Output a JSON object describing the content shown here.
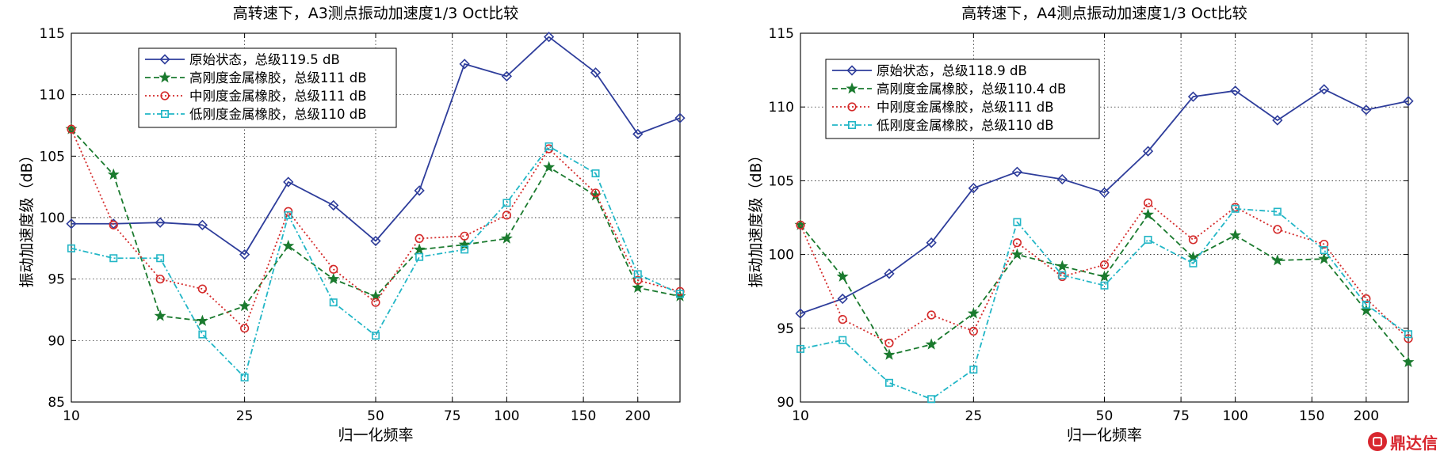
{
  "chart_data": [
    {
      "type": "line",
      "title": "高转速下，A3测点振动加速度1/3 Oct比较",
      "xlabel": "归一化频率",
      "ylabel": "振动加速度级（dB）",
      "x_scale": "log",
      "xlim": [
        10,
        250
      ],
      "ylim": [
        85,
        115
      ],
      "xticks": [
        10,
        25,
        50,
        75,
        100,
        150,
        200
      ],
      "xtick_labels": [
        "10",
        "25",
        "50",
        "75",
        "100",
        "150",
        "200"
      ],
      "yticks": [
        85,
        90,
        95,
        100,
        105,
        110,
        115
      ],
      "grid": true,
      "legend_position": "top-left",
      "x": [
        10,
        12.5,
        16,
        20,
        25,
        31.5,
        40,
        50,
        63,
        80,
        100,
        125,
        160,
        200,
        250
      ],
      "series": [
        {
          "name": "原始状态，总级119.5 dB",
          "color": "#2e3d9b",
          "style": "solid",
          "marker": "diamond",
          "values": [
            99.5,
            99.5,
            99.6,
            99.4,
            97.0,
            102.9,
            101.0,
            98.1,
            102.2,
            112.5,
            111.5,
            114.7,
            111.8,
            106.8,
            108.1
          ]
        },
        {
          "name": "高刚度金属橡胶，总级111 dB",
          "color": "#1a7a2e",
          "style": "dashed",
          "marker": "star",
          "values": [
            107.2,
            103.5,
            92.0,
            91.6,
            92.8,
            97.7,
            95.0,
            93.6,
            97.4,
            97.8,
            98.3,
            104.1,
            101.8,
            94.3,
            93.6
          ]
        },
        {
          "name": "中刚度金属橡胶，总级111 dB",
          "color": "#d42a2a",
          "style": "dotted",
          "marker": "circle",
          "values": [
            107.2,
            99.4,
            95.0,
            94.2,
            91.0,
            100.5,
            95.8,
            93.1,
            98.3,
            98.5,
            100.2,
            105.6,
            102.0,
            94.9,
            94.0
          ]
        },
        {
          "name": "低刚度金属橡胶，总级110 dB",
          "color": "#22b6c6",
          "style": "dashdot",
          "marker": "square",
          "values": [
            97.5,
            96.7,
            96.7,
            90.5,
            87.0,
            100.2,
            93.1,
            90.4,
            96.8,
            97.4,
            101.2,
            105.8,
            103.6,
            95.4,
            93.8
          ]
        }
      ]
    },
    {
      "type": "line",
      "title": "高转速下，A4测点振动加速度1/3 Oct比较",
      "xlabel": "归一化频率",
      "ylabel": "振动加速度级（dB）",
      "x_scale": "log",
      "xlim": [
        10,
        250
      ],
      "ylim": [
        90,
        115
      ],
      "xticks": [
        10,
        25,
        50,
        75,
        100,
        150,
        200
      ],
      "xtick_labels": [
        "10",
        "25",
        "50",
        "75",
        "100",
        "150",
        "200"
      ],
      "yticks": [
        90,
        95,
        100,
        105,
        110,
        115
      ],
      "grid": true,
      "legend_position": "top-left",
      "x": [
        10,
        12.5,
        16,
        20,
        25,
        31.5,
        40,
        50,
        63,
        80,
        100,
        125,
        160,
        200,
        250
      ],
      "series": [
        {
          "name": "原始状态，总级118.9 dB",
          "color": "#2e3d9b",
          "style": "solid",
          "marker": "diamond",
          "values": [
            96.0,
            97.0,
            98.7,
            100.8,
            104.5,
            105.6,
            105.1,
            104.2,
            107.0,
            110.7,
            111.1,
            109.1,
            111.2,
            109.8,
            110.4
          ]
        },
        {
          "name": "高刚度金属橡胶，总级110.4 dB",
          "color": "#1a7a2e",
          "style": "dashed",
          "marker": "star",
          "values": [
            102.0,
            98.5,
            93.2,
            93.9,
            96.0,
            100.0,
            99.2,
            98.5,
            102.7,
            99.8,
            101.3,
            99.6,
            99.7,
            96.2,
            92.7
          ]
        },
        {
          "name": "中刚度金属橡胶，总级111 dB",
          "color": "#d42a2a",
          "style": "dotted",
          "marker": "circle",
          "values": [
            102.0,
            95.6,
            94.0,
            95.9,
            94.8,
            100.8,
            98.5,
            99.3,
            103.5,
            101.0,
            103.2,
            101.7,
            100.7,
            97.0,
            94.3
          ]
        },
        {
          "name": "低刚度金属橡胶，总级110 dB",
          "color": "#22b6c6",
          "style": "dashdot",
          "marker": "square",
          "values": [
            93.6,
            94.2,
            91.3,
            90.2,
            92.2,
            102.2,
            98.6,
            97.9,
            101.0,
            99.4,
            103.1,
            102.9,
            100.3,
            96.6,
            94.6
          ]
        }
      ]
    }
  ],
  "logo": {
    "text": "鼎达信"
  }
}
